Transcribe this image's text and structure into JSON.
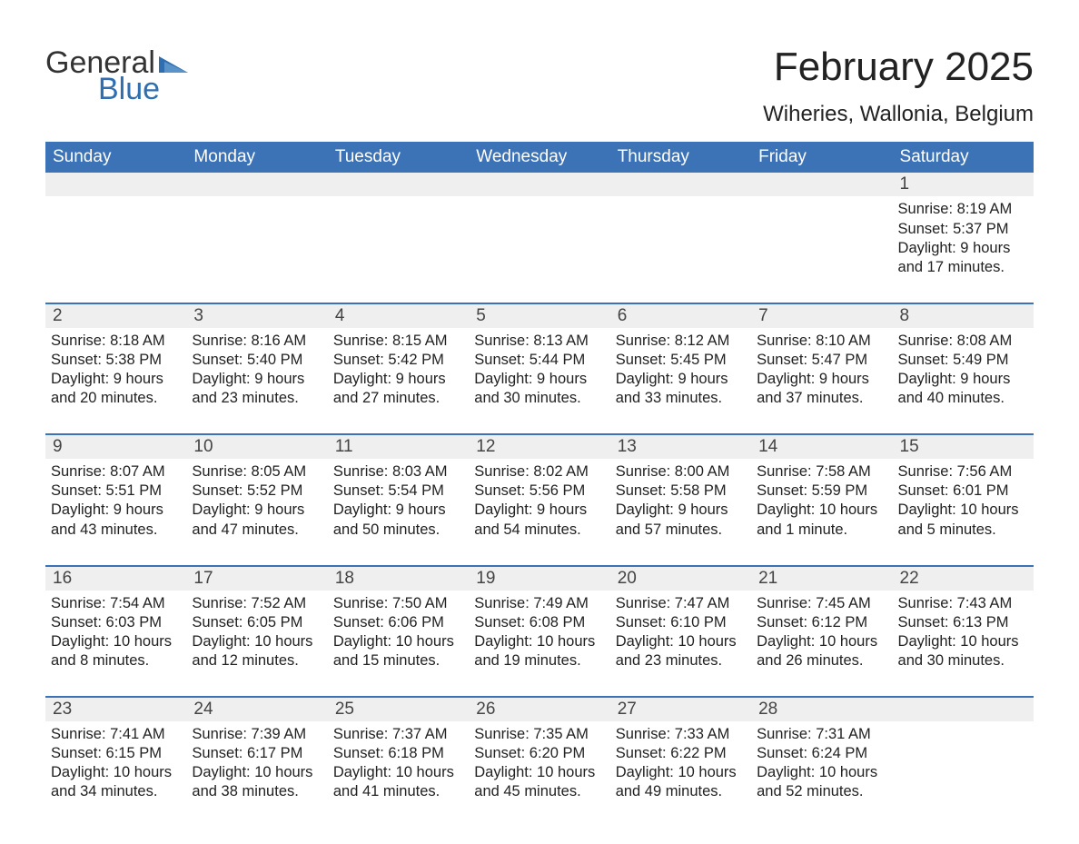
{
  "logo": {
    "text1": "General",
    "text2": "Blue",
    "triangle_color": "#2f6fb0"
  },
  "title": "February 2025",
  "location": "Wiheries, Wallonia, Belgium",
  "header_bg": "#3b73b6",
  "daynum_bg": "#efefef",
  "text_color": "#222222",
  "days_of_week": [
    "Sunday",
    "Monday",
    "Tuesday",
    "Wednesday",
    "Thursday",
    "Friday",
    "Saturday"
  ],
  "weeks": [
    [
      null,
      null,
      null,
      null,
      null,
      null,
      {
        "n": "1",
        "sunrise": "8:19 AM",
        "sunset": "5:37 PM",
        "daylight": "9 hours and 17 minutes."
      }
    ],
    [
      {
        "n": "2",
        "sunrise": "8:18 AM",
        "sunset": "5:38 PM",
        "daylight": "9 hours and 20 minutes."
      },
      {
        "n": "3",
        "sunrise": "8:16 AM",
        "sunset": "5:40 PM",
        "daylight": "9 hours and 23 minutes."
      },
      {
        "n": "4",
        "sunrise": "8:15 AM",
        "sunset": "5:42 PM",
        "daylight": "9 hours and 27 minutes."
      },
      {
        "n": "5",
        "sunrise": "8:13 AM",
        "sunset": "5:44 PM",
        "daylight": "9 hours and 30 minutes."
      },
      {
        "n": "6",
        "sunrise": "8:12 AM",
        "sunset": "5:45 PM",
        "daylight": "9 hours and 33 minutes."
      },
      {
        "n": "7",
        "sunrise": "8:10 AM",
        "sunset": "5:47 PM",
        "daylight": "9 hours and 37 minutes."
      },
      {
        "n": "8",
        "sunrise": "8:08 AM",
        "sunset": "5:49 PM",
        "daylight": "9 hours and 40 minutes."
      }
    ],
    [
      {
        "n": "9",
        "sunrise": "8:07 AM",
        "sunset": "5:51 PM",
        "daylight": "9 hours and 43 minutes."
      },
      {
        "n": "10",
        "sunrise": "8:05 AM",
        "sunset": "5:52 PM",
        "daylight": "9 hours and 47 minutes."
      },
      {
        "n": "11",
        "sunrise": "8:03 AM",
        "sunset": "5:54 PM",
        "daylight": "9 hours and 50 minutes."
      },
      {
        "n": "12",
        "sunrise": "8:02 AM",
        "sunset": "5:56 PM",
        "daylight": "9 hours and 54 minutes."
      },
      {
        "n": "13",
        "sunrise": "8:00 AM",
        "sunset": "5:58 PM",
        "daylight": "9 hours and 57 minutes."
      },
      {
        "n": "14",
        "sunrise": "7:58 AM",
        "sunset": "5:59 PM",
        "daylight": "10 hours and 1 minute."
      },
      {
        "n": "15",
        "sunrise": "7:56 AM",
        "sunset": "6:01 PM",
        "daylight": "10 hours and 5 minutes."
      }
    ],
    [
      {
        "n": "16",
        "sunrise": "7:54 AM",
        "sunset": "6:03 PM",
        "daylight": "10 hours and 8 minutes."
      },
      {
        "n": "17",
        "sunrise": "7:52 AM",
        "sunset": "6:05 PM",
        "daylight": "10 hours and 12 minutes."
      },
      {
        "n": "18",
        "sunrise": "7:50 AM",
        "sunset": "6:06 PM",
        "daylight": "10 hours and 15 minutes."
      },
      {
        "n": "19",
        "sunrise": "7:49 AM",
        "sunset": "6:08 PM",
        "daylight": "10 hours and 19 minutes."
      },
      {
        "n": "20",
        "sunrise": "7:47 AM",
        "sunset": "6:10 PM",
        "daylight": "10 hours and 23 minutes."
      },
      {
        "n": "21",
        "sunrise": "7:45 AM",
        "sunset": "6:12 PM",
        "daylight": "10 hours and 26 minutes."
      },
      {
        "n": "22",
        "sunrise": "7:43 AM",
        "sunset": "6:13 PM",
        "daylight": "10 hours and 30 minutes."
      }
    ],
    [
      {
        "n": "23",
        "sunrise": "7:41 AM",
        "sunset": "6:15 PM",
        "daylight": "10 hours and 34 minutes."
      },
      {
        "n": "24",
        "sunrise": "7:39 AM",
        "sunset": "6:17 PM",
        "daylight": "10 hours and 38 minutes."
      },
      {
        "n": "25",
        "sunrise": "7:37 AM",
        "sunset": "6:18 PM",
        "daylight": "10 hours and 41 minutes."
      },
      {
        "n": "26",
        "sunrise": "7:35 AM",
        "sunset": "6:20 PM",
        "daylight": "10 hours and 45 minutes."
      },
      {
        "n": "27",
        "sunrise": "7:33 AM",
        "sunset": "6:22 PM",
        "daylight": "10 hours and 49 minutes."
      },
      {
        "n": "28",
        "sunrise": "7:31 AM",
        "sunset": "6:24 PM",
        "daylight": "10 hours and 52 minutes."
      },
      null
    ]
  ],
  "labels": {
    "sunrise": "Sunrise:",
    "sunset": "Sunset:",
    "daylight": "Daylight:"
  }
}
